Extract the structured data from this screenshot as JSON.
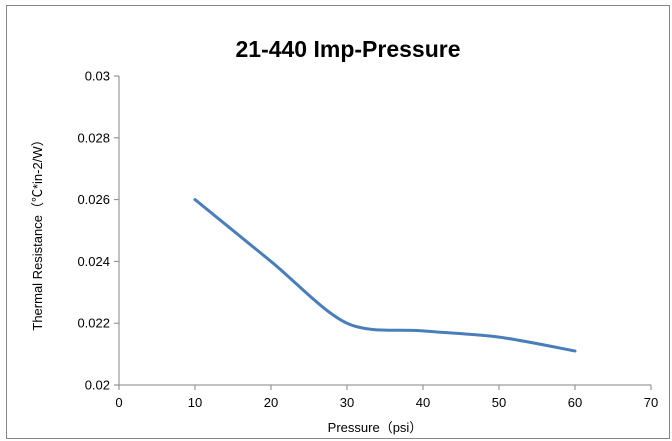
{
  "chart_data": {
    "type": "line",
    "title": "21-440 Imp-Pressure",
    "xlabel": "Pressure（psi）",
    "ylabel": "Thermal Resistance（℃*in-2/W）",
    "xlim": [
      0,
      70
    ],
    "ylim": [
      0.02,
      0.03
    ],
    "x_ticks": [
      "0",
      "10",
      "20",
      "30",
      "40",
      "50",
      "60",
      "70"
    ],
    "y_ticks": [
      "0.02",
      "0.022",
      "0.024",
      "0.026",
      "0.028",
      "0.03"
    ],
    "grid": false,
    "legend": "none",
    "series": [
      {
        "color": "#4a7ebb",
        "x": [
          10,
          20,
          30,
          40,
          50,
          60
        ],
        "y": [
          0.026,
          0.024,
          0.022,
          0.02175,
          0.02155,
          0.0211
        ]
      }
    ]
  }
}
